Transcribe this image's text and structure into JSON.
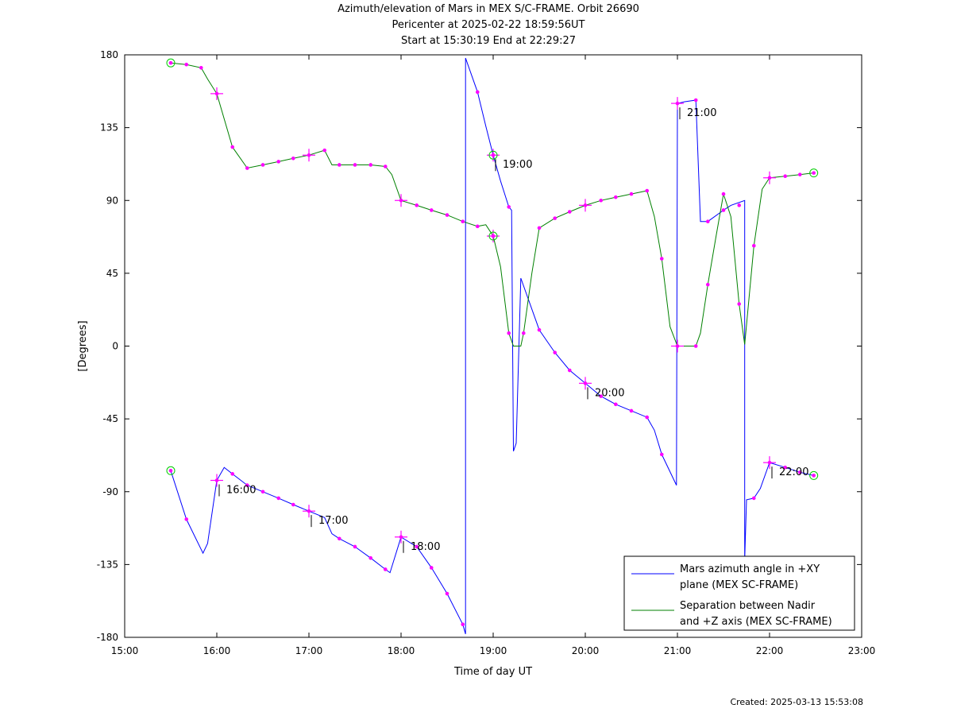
{
  "title": {
    "line1": "Azimuth/elevation of Mars in MEX S/C-FRAME.  Orbit 26690",
    "line2": "Pericenter at 2025-02-22 18:59:56UT",
    "line3": "Start at 15:30:19 End at 22:29:27"
  },
  "created": "Created: 2025-03-13 15:53:08",
  "chart_data": {
    "type": "line",
    "xlabel": "Time of day UT",
    "ylabel": "[Degrees]",
    "xlim": [
      15.0,
      23.0
    ],
    "ylim": [
      -180,
      180
    ],
    "x_ticks": [
      {
        "value": 15,
        "label": "15:00"
      },
      {
        "value": 16,
        "label": "16:00"
      },
      {
        "value": 17,
        "label": "17:00"
      },
      {
        "value": 18,
        "label": "18:00"
      },
      {
        "value": 19,
        "label": "19:00"
      },
      {
        "value": 20,
        "label": "20:00"
      },
      {
        "value": 21,
        "label": "21:00"
      },
      {
        "value": 22,
        "label": "22:00"
      },
      {
        "value": 23,
        "label": "23:00"
      }
    ],
    "y_ticks": [
      {
        "value": 180,
        "label": "180"
      },
      {
        "value": 135,
        "label": "135"
      },
      {
        "value": 90,
        "label": "90"
      },
      {
        "value": 45,
        "label": "45"
      },
      {
        "value": 0,
        "label": "0"
      },
      {
        "value": -45,
        "label": "-45"
      },
      {
        "value": -90,
        "label": "-90"
      },
      {
        "value": -135,
        "label": "-135"
      },
      {
        "value": -180,
        "label": "-180"
      }
    ],
    "grid": false,
    "legend_position": "bottom-right",
    "series": [
      {
        "name": "Mars azimuth angle in +XY plane (MEX SC-FRAME)",
        "legend_lines": [
          "Mars azimuth angle in +XY",
          "plane (MEX SC-FRAME)"
        ],
        "color": "#0000ff",
        "points": [
          [
            15.5,
            -77
          ],
          [
            15.67,
            -107
          ],
          [
            15.85,
            -128
          ],
          [
            15.9,
            -122
          ],
          [
            16.0,
            -83
          ],
          [
            16.08,
            -75
          ],
          [
            16.17,
            -79
          ],
          [
            16.33,
            -86
          ],
          [
            16.5,
            -90
          ],
          [
            16.67,
            -94
          ],
          [
            16.83,
            -98
          ],
          [
            17.0,
            -102
          ],
          [
            17.17,
            -106
          ],
          [
            17.25,
            -116
          ],
          [
            17.33,
            -119
          ],
          [
            17.5,
            -124
          ],
          [
            17.67,
            -131
          ],
          [
            17.83,
            -138
          ],
          [
            17.88,
            -140
          ],
          [
            18.0,
            -118
          ],
          [
            18.17,
            -124
          ],
          [
            18.33,
            -137
          ],
          [
            18.5,
            -153
          ],
          [
            18.67,
            -172
          ],
          [
            18.7,
            -178
          ],
          [
            18.7,
            178
          ],
          [
            18.83,
            157
          ],
          [
            18.92,
            136
          ],
          [
            19.0,
            118
          ],
          [
            19.08,
            102
          ],
          [
            19.17,
            86
          ],
          [
            19.2,
            84
          ],
          [
            19.22,
            -65
          ],
          [
            19.25,
            -60
          ],
          [
            19.3,
            42
          ],
          [
            19.5,
            10
          ],
          [
            19.67,
            -4
          ],
          [
            19.83,
            -15
          ],
          [
            20.0,
            -23
          ],
          [
            20.17,
            -31
          ],
          [
            20.33,
            -36
          ],
          [
            20.5,
            -40
          ],
          [
            20.67,
            -44
          ],
          [
            20.75,
            -52
          ],
          [
            20.83,
            -67
          ],
          [
            20.99,
            -86
          ],
          [
            21.0,
            150
          ],
          [
            21.08,
            151
          ],
          [
            21.2,
            152
          ],
          [
            21.25,
            77
          ],
          [
            21.33,
            77
          ],
          [
            21.5,
            84
          ],
          [
            21.58,
            87
          ],
          [
            21.73,
            90
          ],
          [
            21.73,
            -132
          ],
          [
            21.75,
            -95
          ],
          [
            21.83,
            -94
          ],
          [
            21.9,
            -88
          ],
          [
            22.0,
            -72
          ],
          [
            22.17,
            -75
          ],
          [
            22.33,
            -78
          ],
          [
            22.48,
            -80
          ]
        ]
      },
      {
        "name": "Separation between Nadir and +Z axis (MEX SC-FRAME)",
        "legend_lines": [
          "Separation between Nadir",
          "and +Z axis (MEX SC-FRAME)"
        ],
        "color": "#008000",
        "points": [
          [
            15.5,
            175
          ],
          [
            15.67,
            174
          ],
          [
            15.83,
            172
          ],
          [
            15.9,
            165
          ],
          [
            16.0,
            156
          ],
          [
            16.17,
            123
          ],
          [
            16.33,
            110
          ],
          [
            16.5,
            112
          ],
          [
            16.67,
            114
          ],
          [
            16.83,
            116
          ],
          [
            17.0,
            118
          ],
          [
            17.17,
            121
          ],
          [
            17.25,
            112
          ],
          [
            17.33,
            112
          ],
          [
            17.5,
            112
          ],
          [
            17.67,
            112
          ],
          [
            17.83,
            111
          ],
          [
            17.9,
            106
          ],
          [
            18.0,
            90
          ],
          [
            18.17,
            87
          ],
          [
            18.33,
            84
          ],
          [
            18.5,
            81
          ],
          [
            18.67,
            77
          ],
          [
            18.83,
            74
          ],
          [
            18.92,
            75
          ],
          [
            19.0,
            68
          ],
          [
            19.08,
            49
          ],
          [
            19.17,
            8
          ],
          [
            19.22,
            0
          ],
          [
            19.3,
            0
          ],
          [
            19.33,
            8
          ],
          [
            19.42,
            45
          ],
          [
            19.5,
            73
          ],
          [
            19.67,
            79
          ],
          [
            19.83,
            83
          ],
          [
            20.0,
            87
          ],
          [
            20.17,
            90
          ],
          [
            20.33,
            92
          ],
          [
            20.5,
            94
          ],
          [
            20.67,
            96
          ],
          [
            20.75,
            80
          ],
          [
            20.83,
            54
          ],
          [
            20.92,
            12
          ],
          [
            21.0,
            0
          ],
          [
            21.2,
            0
          ],
          [
            21.25,
            8
          ],
          [
            21.33,
            38
          ],
          [
            21.42,
            68
          ],
          [
            21.5,
            94
          ],
          [
            21.58,
            80
          ],
          [
            21.67,
            26
          ],
          [
            21.73,
            1
          ],
          [
            21.83,
            62
          ],
          [
            21.92,
            97
          ],
          [
            22.0,
            104
          ],
          [
            22.17,
            105
          ],
          [
            22.33,
            106
          ],
          [
            22.48,
            107
          ]
        ]
      }
    ],
    "markers": [
      [
        15.67,
        -107
      ],
      [
        16.17,
        -79
      ],
      [
        16.33,
        -86
      ],
      [
        16.5,
        -90
      ],
      [
        16.67,
        -94
      ],
      [
        16.83,
        -98
      ],
      [
        17.33,
        -119
      ],
      [
        17.5,
        -124
      ],
      [
        17.67,
        -131
      ],
      [
        17.83,
        -138
      ],
      [
        18.17,
        -124
      ],
      [
        18.33,
        -137
      ],
      [
        18.5,
        -153
      ],
      [
        18.67,
        -172
      ],
      [
        18.83,
        157
      ],
      [
        19.17,
        86
      ],
      [
        19.5,
        10
      ],
      [
        19.67,
        -4
      ],
      [
        19.83,
        -15
      ],
      [
        20.17,
        -31
      ],
      [
        20.33,
        -36
      ],
      [
        20.5,
        -40
      ],
      [
        20.67,
        -44
      ],
      [
        20.83,
        -67
      ],
      [
        21.2,
        152
      ],
      [
        21.33,
        77
      ],
      [
        21.5,
        84
      ],
      [
        21.67,
        87
      ],
      [
        21.83,
        -94
      ],
      [
        22.17,
        -75
      ],
      [
        22.33,
        -78
      ],
      [
        15.67,
        174
      ],
      [
        15.83,
        172
      ],
      [
        16.17,
        123
      ],
      [
        16.33,
        110
      ],
      [
        16.5,
        112
      ],
      [
        16.67,
        114
      ],
      [
        16.83,
        116
      ],
      [
        17.17,
        121
      ],
      [
        17.33,
        112
      ],
      [
        17.5,
        112
      ],
      [
        17.67,
        112
      ],
      [
        17.83,
        111
      ],
      [
        18.17,
        87
      ],
      [
        18.33,
        84
      ],
      [
        18.5,
        81
      ],
      [
        18.67,
        77
      ],
      [
        18.83,
        74
      ],
      [
        19.17,
        8
      ],
      [
        19.33,
        8
      ],
      [
        19.5,
        73
      ],
      [
        19.67,
        79
      ],
      [
        19.83,
        83
      ],
      [
        20.17,
        90
      ],
      [
        20.33,
        92
      ],
      [
        20.5,
        94
      ],
      [
        20.67,
        96
      ],
      [
        20.83,
        54
      ],
      [
        21.2,
        0
      ],
      [
        21.33,
        38
      ],
      [
        21.5,
        94
      ],
      [
        21.67,
        26
      ],
      [
        21.83,
        62
      ],
      [
        22.17,
        105
      ],
      [
        22.33,
        106
      ]
    ],
    "hour_crosses": [
      [
        16.0,
        -83
      ],
      [
        17.0,
        -102
      ],
      [
        18.0,
        -118
      ],
      [
        19.0,
        118
      ],
      [
        20.0,
        -23
      ],
      [
        21.0,
        150
      ],
      [
        22.0,
        -72
      ],
      [
        16.0,
        156
      ],
      [
        17.0,
        118
      ],
      [
        18.0,
        90
      ],
      [
        19.0,
        68
      ],
      [
        20.0,
        87
      ],
      [
        21.0,
        0
      ],
      [
        22.0,
        104
      ]
    ],
    "endpoint_circles": [
      [
        15.5,
        -77
      ],
      [
        22.48,
        -80
      ],
      [
        15.5,
        175
      ],
      [
        22.48,
        107
      ],
      [
        19.0,
        118
      ],
      [
        19.0,
        68
      ]
    ],
    "time_annotations": [
      {
        "x": 16.0,
        "y": -83,
        "label": "16:00"
      },
      {
        "x": 17.0,
        "y": -102,
        "label": "17:00"
      },
      {
        "x": 18.0,
        "y": -118,
        "label": "18:00"
      },
      {
        "x": 19.0,
        "y": 118,
        "label": "19:00"
      },
      {
        "x": 20.0,
        "y": -23,
        "label": "20:00"
      },
      {
        "x": 21.0,
        "y": 150,
        "label": "21:00"
      },
      {
        "x": 22.0,
        "y": -72,
        "label": "22:00"
      }
    ],
    "marker_color": "#ff00ff",
    "circle_color": "#00cc00"
  }
}
